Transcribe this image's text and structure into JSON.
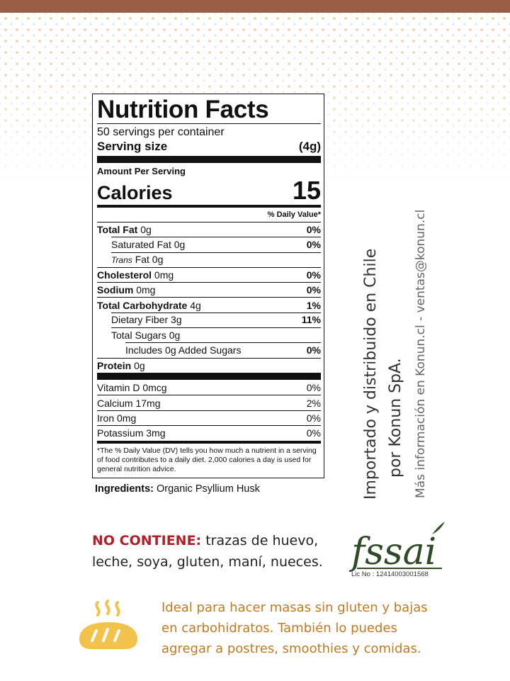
{
  "nutrition": {
    "title": "Nutrition Facts",
    "servings": "50 servings per container",
    "serving_size_label": "Serving size",
    "serving_size_value": "(4g)",
    "amount_per_serving": "Amount Per Serving",
    "calories_label": "Calories",
    "calories_value": "15",
    "daily_value_header": "% Daily Value*",
    "rows": [
      {
        "label": "Total Fat",
        "amount": "0g",
        "pct": "0%"
      },
      {
        "label": "Saturated Fat",
        "amount": "0g",
        "pct": "0%"
      },
      {
        "label": "Trans",
        "amount": "Fat 0g",
        "pct": ""
      },
      {
        "label": "Cholesterol",
        "amount": "0mg",
        "pct": "0%"
      },
      {
        "label": "Sodium",
        "amount": "0mg",
        "pct": "0%"
      },
      {
        "label": "Total Carbohydrate",
        "amount": "4g",
        "pct": "1%"
      },
      {
        "label": "Dietary Fiber",
        "amount": "3g",
        "pct": "11%"
      },
      {
        "label": "Total Sugars",
        "amount": "0g",
        "pct": ""
      },
      {
        "label": "Includes 0g Added Sugars",
        "amount": "",
        "pct": "0%"
      },
      {
        "label": "Protein",
        "amount": "0g",
        "pct": ""
      }
    ],
    "vitamins": [
      {
        "label": "Vitamin D 0mcg",
        "pct": "0%"
      },
      {
        "label": "Calcium 17mg",
        "pct": "2%"
      },
      {
        "label": "Iron 0mg",
        "pct": "0%"
      },
      {
        "label": "Potassium 3mg",
        "pct": "0%"
      }
    ],
    "footnote": "*The % Daily Value (DV) tells you how much a nutrient in a serving of food contributes to a daily diet. 2,000 calories a day is used for general nutrition advice."
  },
  "ingredients": {
    "label": "Ingredients:",
    "text": "Organic Psyllium Husk"
  },
  "side_text": {
    "line1": "Importado y distribuido en Chile",
    "line2": "por Konun SpA.",
    "line3": "Más información en Konun.cl - ventas@konun.cl"
  },
  "no_contiene": {
    "label": "NO CONTIENE:",
    "text": "trazas de huevo, leche, soya, gluten, maní, nueces."
  },
  "fssai": {
    "logo_text": "fssai",
    "license": "Lic No : 12414003001568"
  },
  "ideal_text": "Ideal para hacer masas sin gluten y bajas en carbohidratos. También lo puedes agregar a postres, smoothies y comidas.",
  "colors": {
    "top_band": "#9a5e44",
    "pattern": "#d2aa6e",
    "no_contiene_red": "#b21e2a",
    "ideal_text": "#bf7a1f",
    "bread": "#f2c24a",
    "fssai_green": "#2f4a26"
  },
  "icons": {
    "bread": "bread-icon",
    "fssai": "fssai-logo"
  }
}
